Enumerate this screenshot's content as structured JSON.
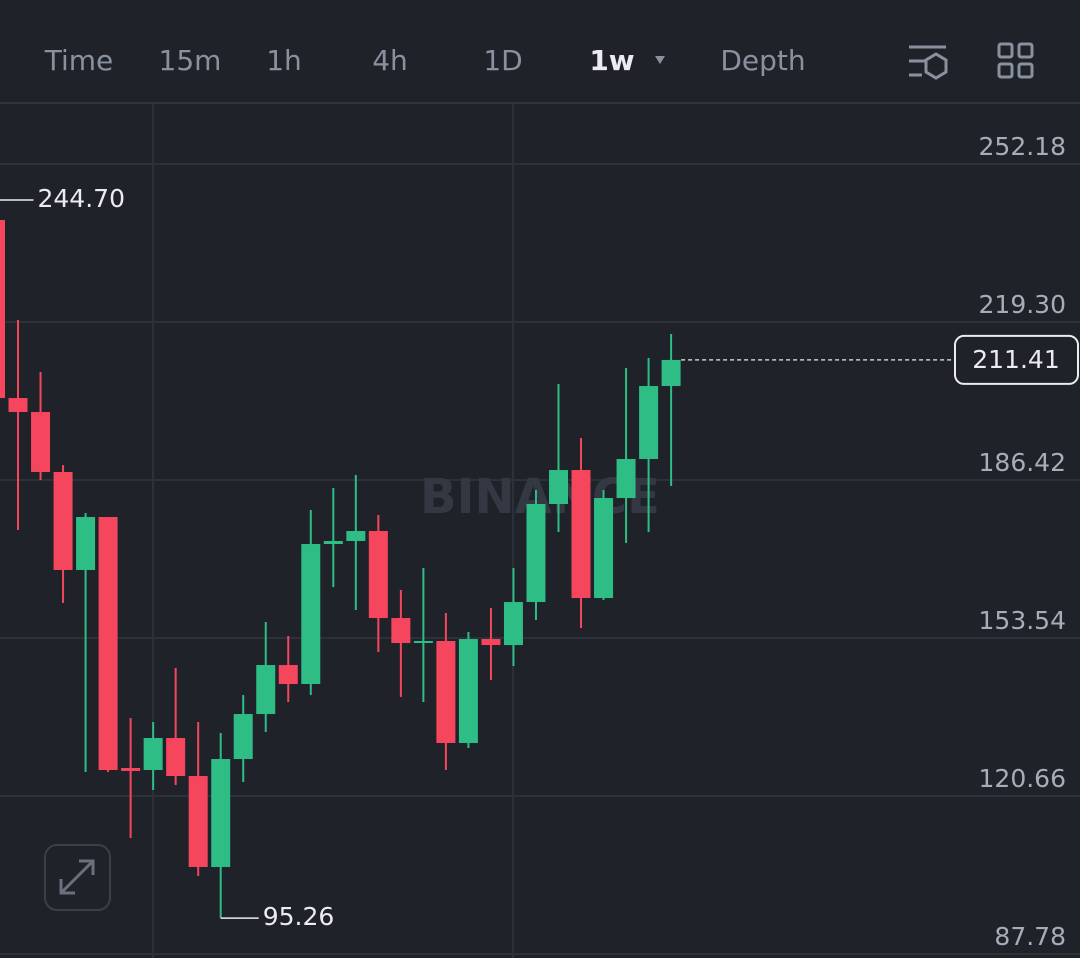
{
  "toolbar": {
    "tabs": [
      "Time",
      "15m",
      "1h",
      "4h",
      "1D",
      "1w",
      "Depth"
    ],
    "active": "1w"
  },
  "watermark": "BINANCE",
  "chart_data": {
    "type": "candlestick",
    "open": [
      240.53,
      203.48,
      200.57,
      188.09,
      167.69,
      178.72,
      126.49,
      126.07,
      132.73,
      124.82,
      105.89,
      128.36,
      137.72,
      147.92,
      143.97,
      173.1,
      173.73,
      175.81,
      157.7,
      152.5,
      152.92,
      131.69,
      153.33,
      152.08,
      161.03,
      181.43,
      188.5,
      161.86,
      182.67,
      190.79,
      205.98
    ],
    "high": [
      244.7,
      219.72,
      208.9,
      189.54,
      179.55,
      178.72,
      136.89,
      136.06,
      147.3,
      136.06,
      133.77,
      141.68,
      156.87,
      153.96,
      180.18,
      184.76,
      187.46,
      179.14,
      163.53,
      168.11,
      158.74,
      154.79,
      159.78,
      168.11,
      184.34,
      206.4,
      195.16,
      184.34,
      209.73,
      211.81,
      216.8
    ],
    "low": [
      203.48,
      176.02,
      186.42,
      160.82,
      125.66,
      125.66,
      111.92,
      121.91,
      122.95,
      104.01,
      95.26,
      123.57,
      133.98,
      140.22,
      141.68,
      164.15,
      159.37,
      150.63,
      141.26,
      140.22,
      126.07,
      130.65,
      144.8,
      147.71,
      157.29,
      175.6,
      155.62,
      161.45,
      173.31,
      175.6,
      185.17
    ],
    "close": [
      203.48,
      200.57,
      188.09,
      167.69,
      178.72,
      126.07,
      125.87,
      132.73,
      124.82,
      105.89,
      128.36,
      137.72,
      147.92,
      143.97,
      173.1,
      173.73,
      175.81,
      157.7,
      152.5,
      152.92,
      131.69,
      153.33,
      152.08,
      161.03,
      181.43,
      188.5,
      161.86,
      182.67,
      190.79,
      205.98,
      211.41
    ],
    "up_color": "#2ebd85",
    "down_color": "#f6465d",
    "ylim": [
      86.95,
      264.67
    ],
    "yticks": [
      252.18,
      {
        "value": 219.3,
        "label": "219.30"
      },
      186.42,
      153.54,
      120.66,
      87.78
    ],
    "grid": true,
    "annotations": [
      {
        "label": "244.70",
        "value": 244.7,
        "index": 0,
        "kind": "high"
      },
      {
        "label": "95.26",
        "value": 95.26,
        "index": 10,
        "kind": "low"
      },
      {
        "label": "211.41",
        "value": 211.41,
        "index": 30,
        "kind": "last"
      }
    ]
  }
}
